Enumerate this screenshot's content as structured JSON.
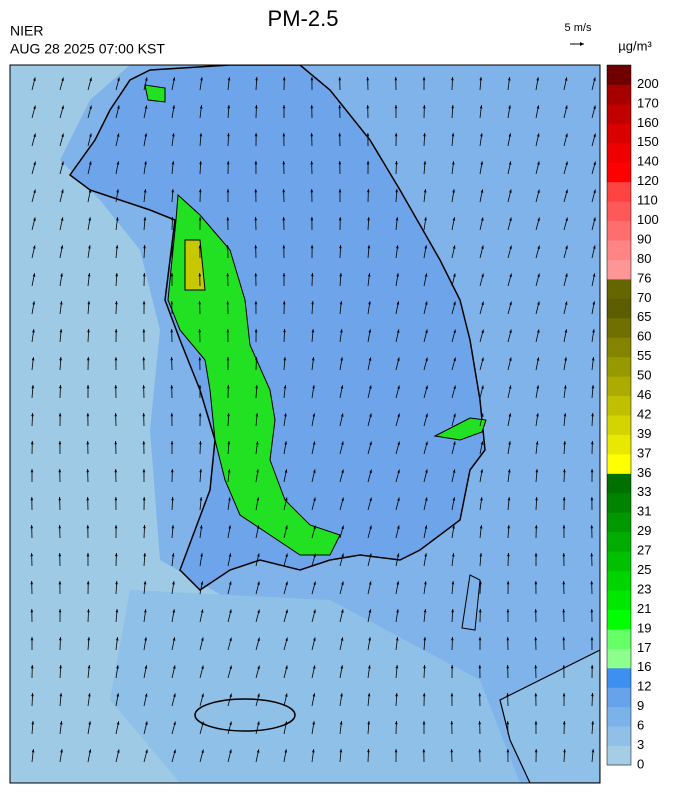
{
  "title": "PM-2.5",
  "source": "NIER",
  "timestamp": "AUG 28 2025 07:00 KST",
  "wind_reference": "5 m/s",
  "unit": "µg/m³",
  "colorbar": {
    "levels": [
      0,
      3,
      6,
      9,
      12,
      16,
      17,
      19,
      21,
      23,
      25,
      27,
      29,
      31,
      33,
      36,
      37,
      39,
      42,
      46,
      50,
      55,
      60,
      65,
      70,
      76,
      80,
      90,
      100,
      110,
      120,
      140,
      150,
      160,
      170,
      200
    ],
    "colors": [
      "#a6cde6",
      "#90bfe8",
      "#7cb2ea",
      "#66a3ea",
      "#3d90f0",
      "#8cff8c",
      "#66ff66",
      "#00ff00",
      "#00e800",
      "#00d400",
      "#00c000",
      "#00ac00",
      "#009800",
      "#008400",
      "#007000",
      "#ffff00",
      "#e8e800",
      "#d4d400",
      "#c0c000",
      "#acac00",
      "#989800",
      "#848400",
      "#707000",
      "#5c5c00",
      "#666600",
      "#ff9696",
      "#ff8484",
      "#ff6e6e",
      "#ff5858",
      "#ff4242",
      "#ff0000",
      "#ee0000",
      "#d80000",
      "#c00000",
      "#a60000",
      "#700000"
    ]
  }
}
